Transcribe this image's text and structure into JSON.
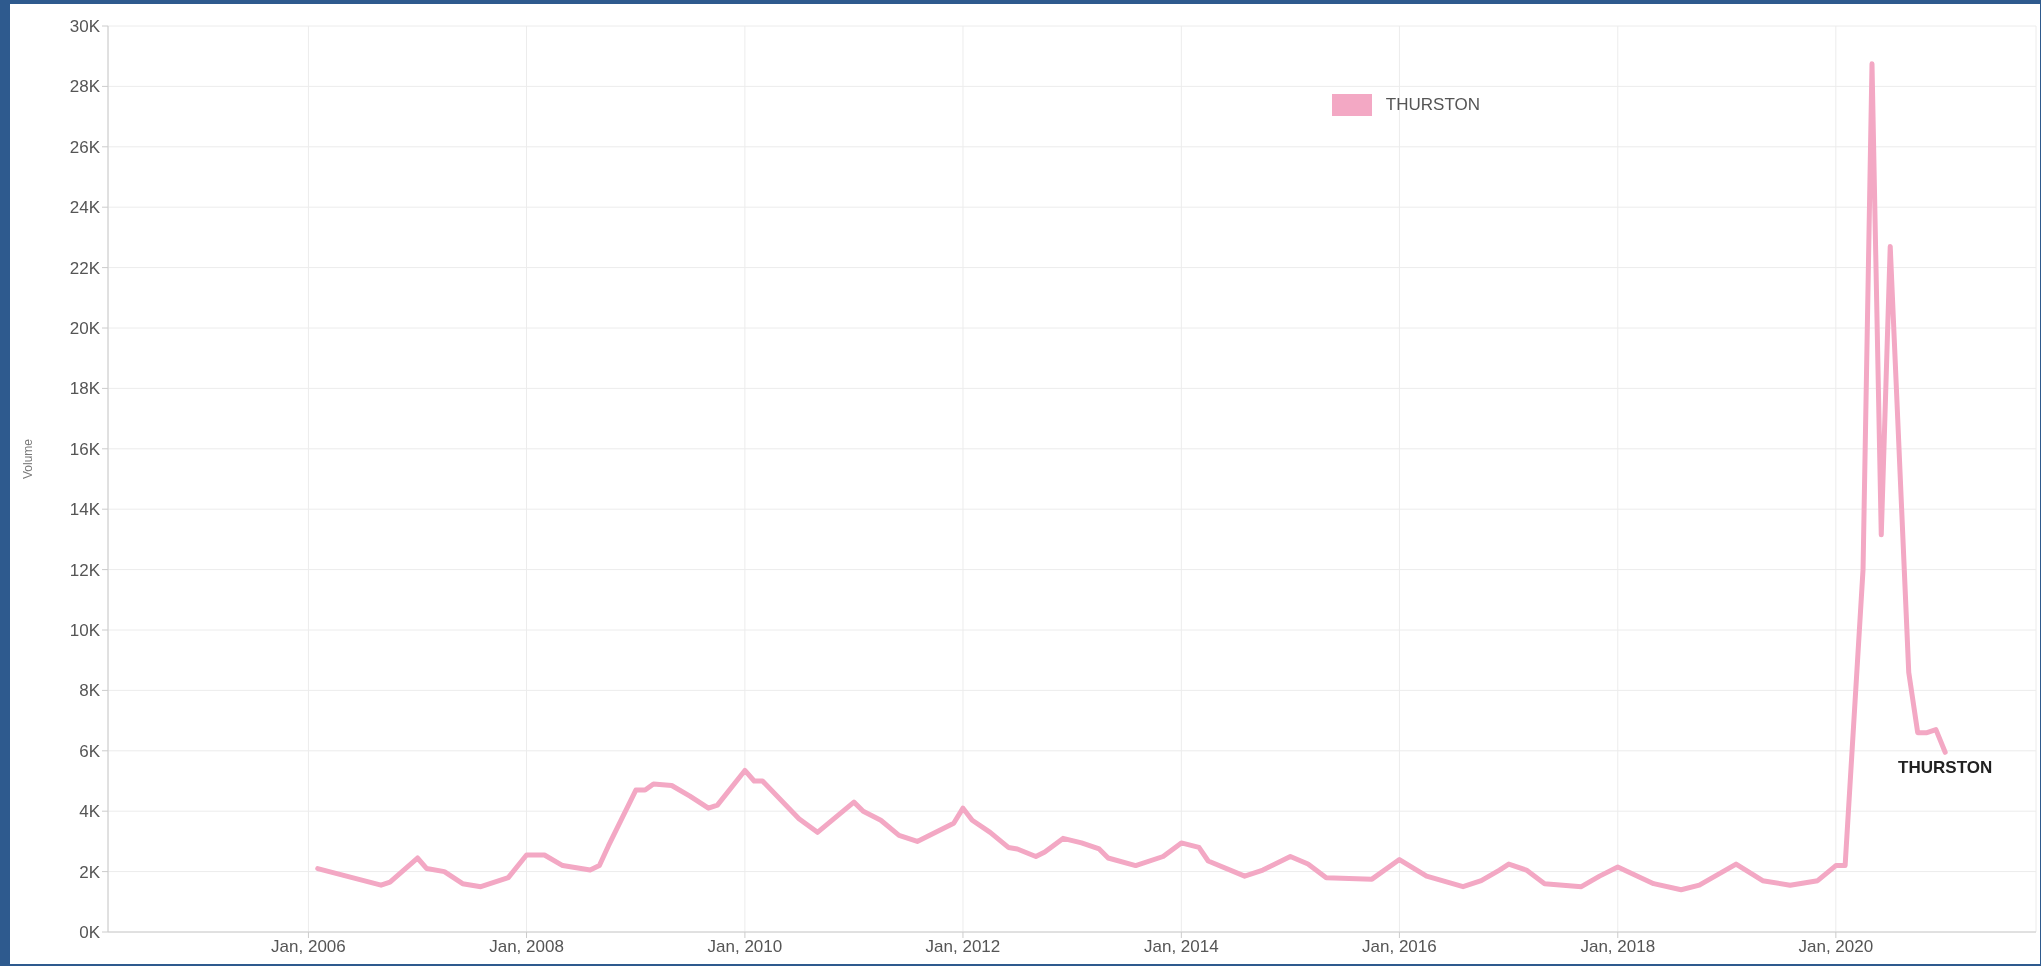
{
  "chart_data": {
    "type": "line",
    "ylabel": "Volume",
    "x": [
      "2006-02",
      "2006-09",
      "2006-10",
      "2007-01",
      "2007-02",
      "2007-04",
      "2007-06",
      "2007-08",
      "2007-11",
      "2008-01",
      "2008-03",
      "2008-05",
      "2008-08",
      "2008-09",
      "2008-10",
      "2009-01",
      "2009-02",
      "2009-03",
      "2009-05",
      "2009-07",
      "2009-09",
      "2009-10",
      "2010-01",
      "2010-02",
      "2010-03",
      "2010-07",
      "2010-09",
      "2011-01",
      "2011-02",
      "2011-04",
      "2011-06",
      "2011-08",
      "2011-12",
      "2012-01",
      "2012-02",
      "2012-04",
      "2012-06",
      "2012-07",
      "2012-09",
      "2012-10",
      "2012-12",
      "2013-02",
      "2013-04",
      "2013-05",
      "2013-08",
      "2013-11",
      "2014-01",
      "2014-03",
      "2014-04",
      "2014-08",
      "2014-10",
      "2015-01",
      "2015-03",
      "2015-05",
      "2015-10",
      "2016-01",
      "2016-04",
      "2016-08",
      "2016-10",
      "2016-12",
      "2017-01",
      "2017-03",
      "2017-05",
      "2017-09",
      "2017-11",
      "2018-01",
      "2018-05",
      "2018-08",
      "2018-10",
      "2019-02",
      "2019-05",
      "2019-08",
      "2019-11",
      "2020-01",
      "2020-02",
      "2020-04",
      "2020-05",
      "2020-06",
      "2020-07",
      "2020-09",
      "2020-10",
      "2020-11",
      "2020-12",
      "2021-01"
    ],
    "series": [
      {
        "name": "THURSTON",
        "color": "#f3a8c4",
        "values": [
          2100,
          1550,
          1650,
          2450,
          2100,
          2000,
          1600,
          1500,
          1800,
          2550,
          2550,
          2200,
          2050,
          2200,
          2850,
          4700,
          4700,
          4900,
          4850,
          4500,
          4100,
          4200,
          5350,
          5000,
          5000,
          3750,
          3300,
          4300,
          4000,
          3700,
          3200,
          3000,
          3600,
          4100,
          3700,
          3300,
          2800,
          2750,
          2500,
          2650,
          3100,
          2950,
          2750,
          2450,
          2200,
          2500,
          2950,
          2800,
          2350,
          1850,
          2050,
          2500,
          2250,
          1800,
          1750,
          2400,
          1850,
          1500,
          1700,
          2050,
          2250,
          2050,
          1600,
          1500,
          1850,
          2150,
          1600,
          1400,
          1550,
          2250,
          1700,
          1550,
          1700,
          2200,
          2200,
          12000,
          28750,
          13150,
          22700,
          8600,
          6600,
          6600,
          6700,
          5950
        ]
      }
    ],
    "xlim": [
      "2004-03",
      "2021-11"
    ],
    "xticks": [
      {
        "value": "2006-01",
        "label": "Jan, 2006"
      },
      {
        "value": "2008-01",
        "label": "Jan, 2008"
      },
      {
        "value": "2010-01",
        "label": "Jan, 2010"
      },
      {
        "value": "2012-01",
        "label": "Jan, 2012"
      },
      {
        "value": "2014-01",
        "label": "Jan, 2014"
      },
      {
        "value": "2016-01",
        "label": "Jan, 2016"
      },
      {
        "value": "2018-01",
        "label": "Jan, 2018"
      },
      {
        "value": "2020-01",
        "label": "Jan, 2020"
      }
    ],
    "ylim": [
      0,
      30000
    ],
    "yticks": [
      {
        "value": 0,
        "label": "0K"
      },
      {
        "value": 2000,
        "label": "2K"
      },
      {
        "value": 4000,
        "label": "4K"
      },
      {
        "value": 6000,
        "label": "6K"
      },
      {
        "value": 8000,
        "label": "8K"
      },
      {
        "value": 10000,
        "label": "10K"
      },
      {
        "value": 12000,
        "label": "12K"
      },
      {
        "value": 14000,
        "label": "14K"
      },
      {
        "value": 16000,
        "label": "16K"
      },
      {
        "value": 18000,
        "label": "18K"
      },
      {
        "value": 20000,
        "label": "20K"
      },
      {
        "value": 22000,
        "label": "22K"
      },
      {
        "value": 24000,
        "label": "24K"
      },
      {
        "value": 26000,
        "label": "26K"
      },
      {
        "value": 28000,
        "label": "28K"
      },
      {
        "value": 30000,
        "label": "30K"
      }
    ],
    "annotations": [
      {
        "text": "THURSTON",
        "x": "2021-01",
        "y": 5950
      }
    ],
    "grid": true,
    "legend": "top right"
  }
}
